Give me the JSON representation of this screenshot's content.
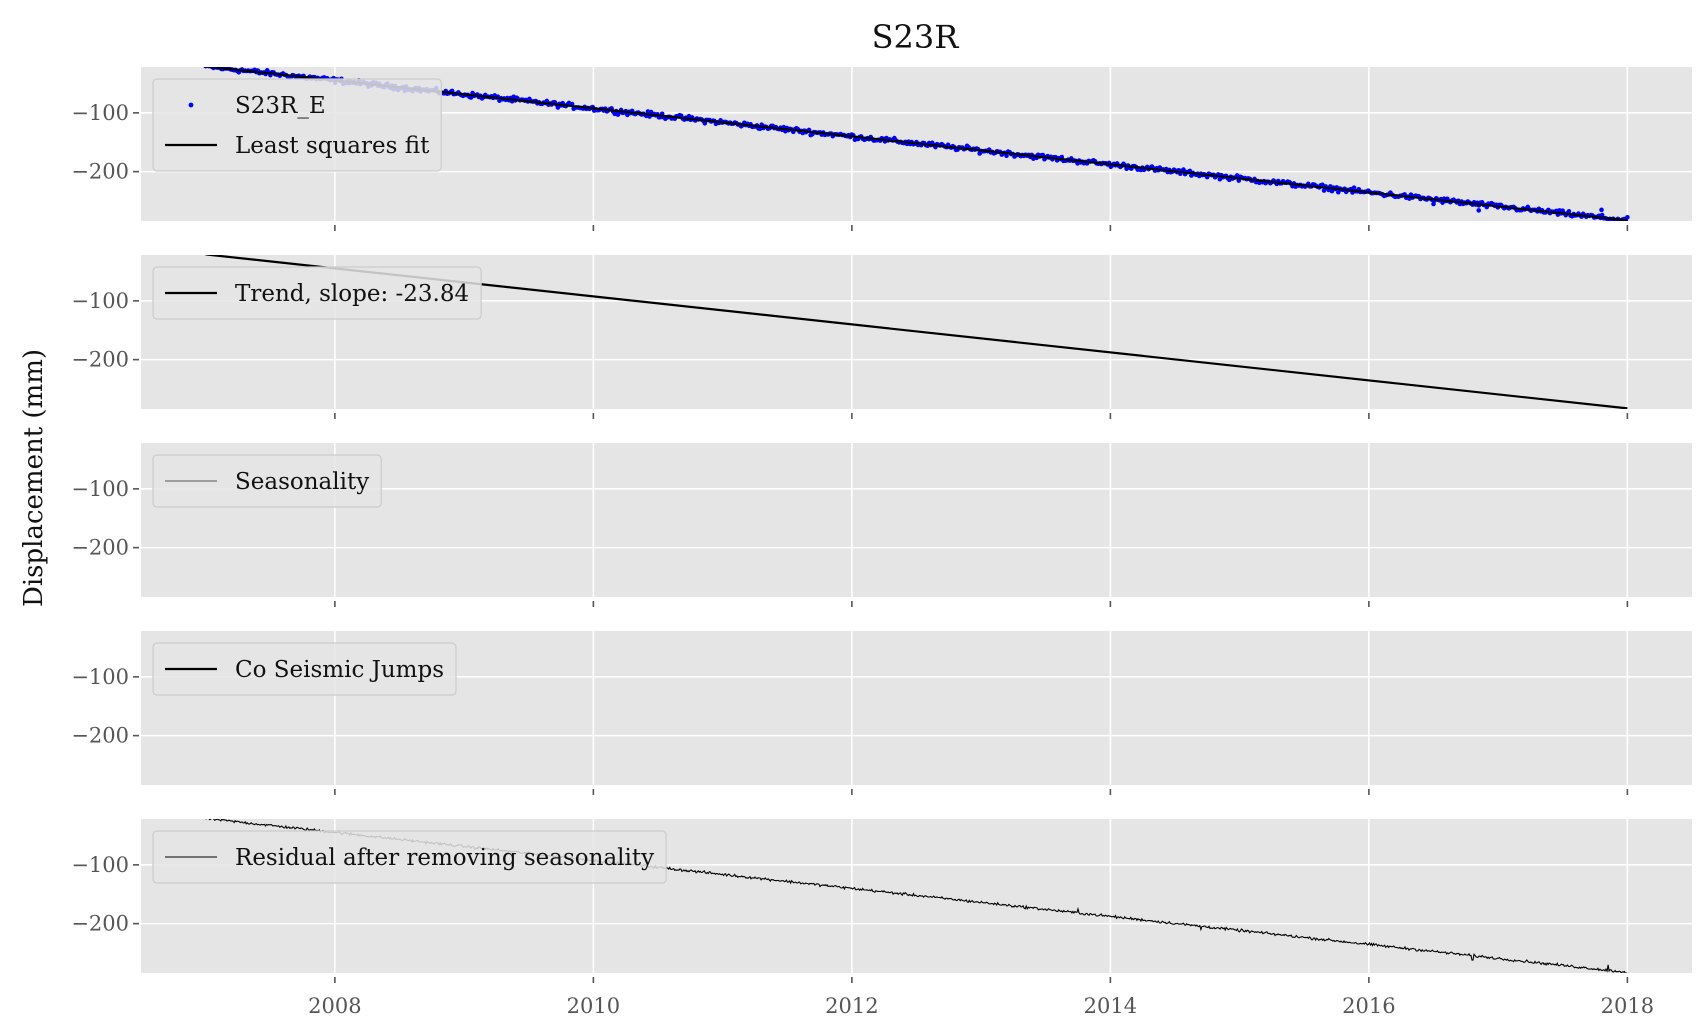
{
  "chart_data": {
    "type": "line",
    "title": "S23R",
    "ylabel": "Displacement (mm)",
    "xlim": [
      2006.5,
      2018.5
    ],
    "ylim": [
      -284,
      -22
    ],
    "x_ticks": [
      2008,
      2010,
      2012,
      2014,
      2016,
      2018
    ],
    "y_ticks": [
      -100,
      -200
    ],
    "grid": true,
    "panels": [
      {
        "legend_placement": "upper-left",
        "series": [
          {
            "name": "S23R_E",
            "kind": "scatter",
            "color": "#0000ff",
            "start": [
              2007.0,
              -21
            ],
            "end": [
              2018.0,
              -283
            ],
            "noise": 3,
            "outliers": [
              [
                2016.5,
                -255
              ],
              [
                2016.85,
                -266
              ],
              [
                2017.8,
                -265
              ]
            ]
          },
          {
            "name": "Least squares fit",
            "kind": "line",
            "color": "#000000",
            "points": [
              [
                2007.0,
                -21
              ],
              [
                2018.0,
                -283
              ]
            ]
          }
        ]
      },
      {
        "legend_placement": "upper-left",
        "series": [
          {
            "name": "Trend, slope: -23.84",
            "kind": "line",
            "color": "#000000",
            "points": [
              [
                2007.0,
                -21
              ],
              [
                2018.0,
                -283
              ]
            ]
          }
        ]
      },
      {
        "legend_placement": "upper-left",
        "series": [
          {
            "name": "Seasonality",
            "kind": "line",
            "color": "#555555",
            "points": []
          }
        ]
      },
      {
        "legend_placement": "upper-left",
        "series": [
          {
            "name": "Co Seismic Jumps",
            "kind": "line",
            "color": "#000000",
            "points": []
          }
        ]
      },
      {
        "legend_placement": "upper-left",
        "series": [
          {
            "name": "Residual after removing seasonality",
            "kind": "noisy-line",
            "color": "#000000",
            "start": [
              2007.0,
              -21
            ],
            "end": [
              2018.0,
              -283
            ],
            "noise": 1.6,
            "spikes": [
              [
                2013.75,
                -175
              ],
              [
                2014.7,
                -210
              ],
              [
                2016.35,
                -243
              ],
              [
                2016.8,
                -262
              ],
              [
                2017.85,
                -270
              ]
            ]
          }
        ]
      }
    ]
  }
}
